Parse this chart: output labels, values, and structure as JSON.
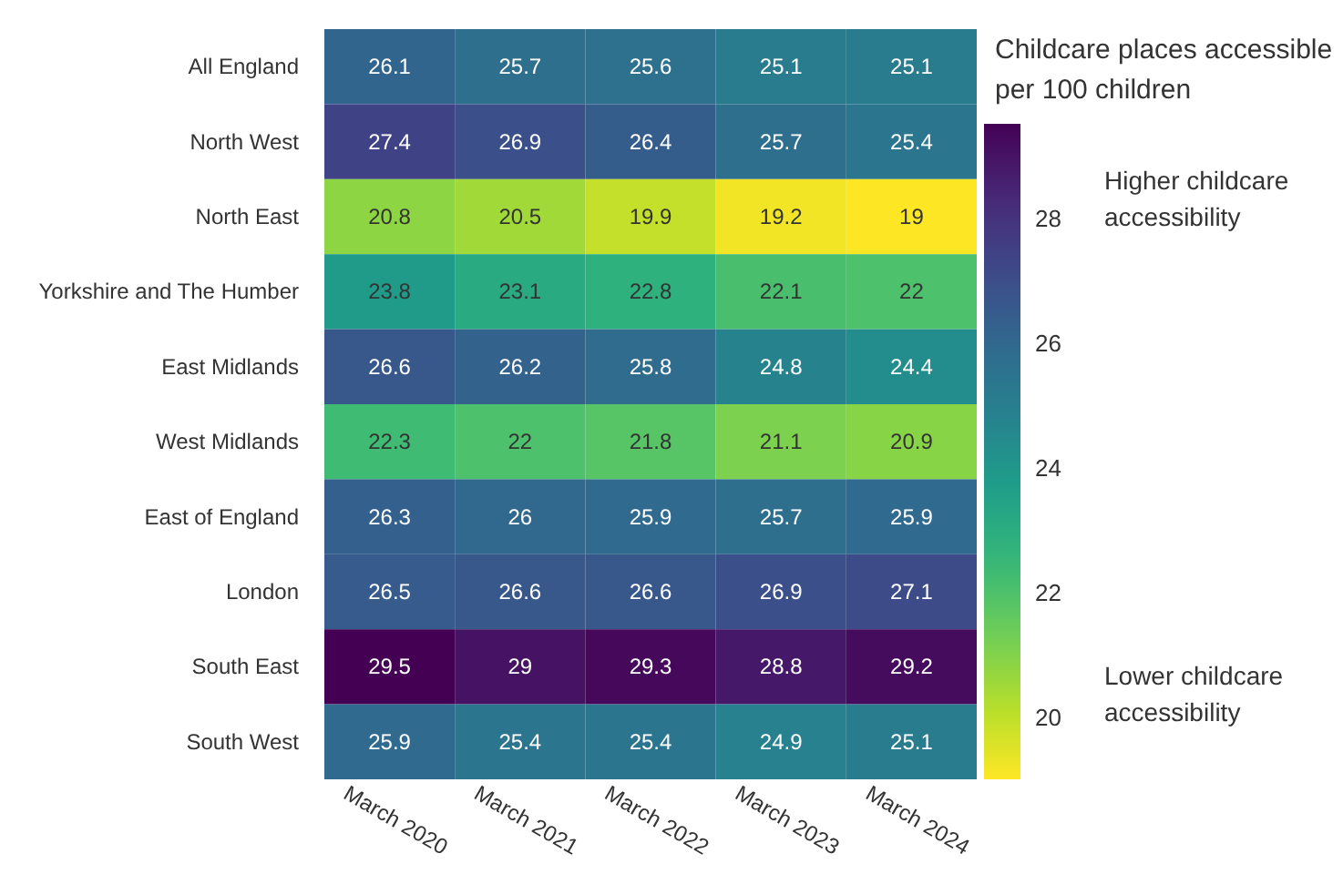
{
  "chart_data": {
    "type": "heatmap",
    "clabel": "Childcare places accessible per 100 children",
    "categories": [
      "March 2020",
      "March 2021",
      "March 2022",
      "March 2023",
      "March 2024"
    ],
    "y_categories": [
      "All England",
      "North West",
      "North East",
      "Yorkshire and The Humber",
      "East Midlands",
      "West Midlands",
      "East of England",
      "London",
      "South East",
      "South West"
    ],
    "cells": [
      [
        26.1,
        25.7,
        25.6,
        25.1,
        25.1
      ],
      [
        27.4,
        26.9,
        26.4,
        25.7,
        25.4
      ],
      [
        20.8,
        20.5,
        19.9,
        19.2,
        19
      ],
      [
        23.8,
        23.1,
        22.8,
        22.1,
        22
      ],
      [
        26.6,
        26.2,
        25.8,
        24.8,
        24.4
      ],
      [
        22.3,
        22,
        21.8,
        21.1,
        20.9
      ],
      [
        26.3,
        26,
        25.9,
        25.7,
        25.9
      ],
      [
        26.5,
        26.6,
        26.6,
        26.9,
        27.1
      ],
      [
        29.5,
        29,
        29.3,
        28.8,
        29.2
      ],
      [
        25.9,
        25.4,
        25.4,
        24.9,
        25.1
      ]
    ],
    "data_labels": true,
    "clim": [
      19,
      29.5
    ],
    "cticks": [
      20,
      22,
      24,
      26,
      28
    ],
    "annotations": [
      "Higher childcare accessibility",
      "Lower childcare accessibility"
    ]
  }
}
